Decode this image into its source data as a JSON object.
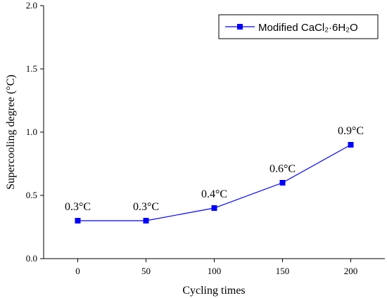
{
  "chart_data": {
    "type": "line",
    "title": "",
    "xlabel": "Cycling times",
    "ylabel": "Supercooling degree (°C)",
    "xlim": [
      -25,
      225
    ],
    "ylim": [
      0,
      2.0
    ],
    "x_ticks": [
      0,
      50,
      100,
      150,
      200
    ],
    "y_ticks": [
      0.0,
      0.5,
      1.0,
      1.5,
      2.0
    ],
    "x_tick_labels": [
      "0",
      "50",
      "100",
      "150",
      "200"
    ],
    "y_tick_labels": [
      "0.0",
      "0.5",
      "1.0",
      "1.5",
      "2.0"
    ],
    "grid": false,
    "legend_position": "top-right",
    "series": [
      {
        "name": "Modified CaCl₂·6H₂O",
        "color": "#0000ff",
        "marker": "square",
        "x": [
          0,
          50,
          100,
          150,
          200
        ],
        "y": [
          0.3,
          0.3,
          0.4,
          0.6,
          0.9
        ],
        "labels": [
          "0.3°C",
          "0.3°C",
          "0.4°C",
          "0.6°C",
          "0.9°C"
        ]
      }
    ]
  }
}
